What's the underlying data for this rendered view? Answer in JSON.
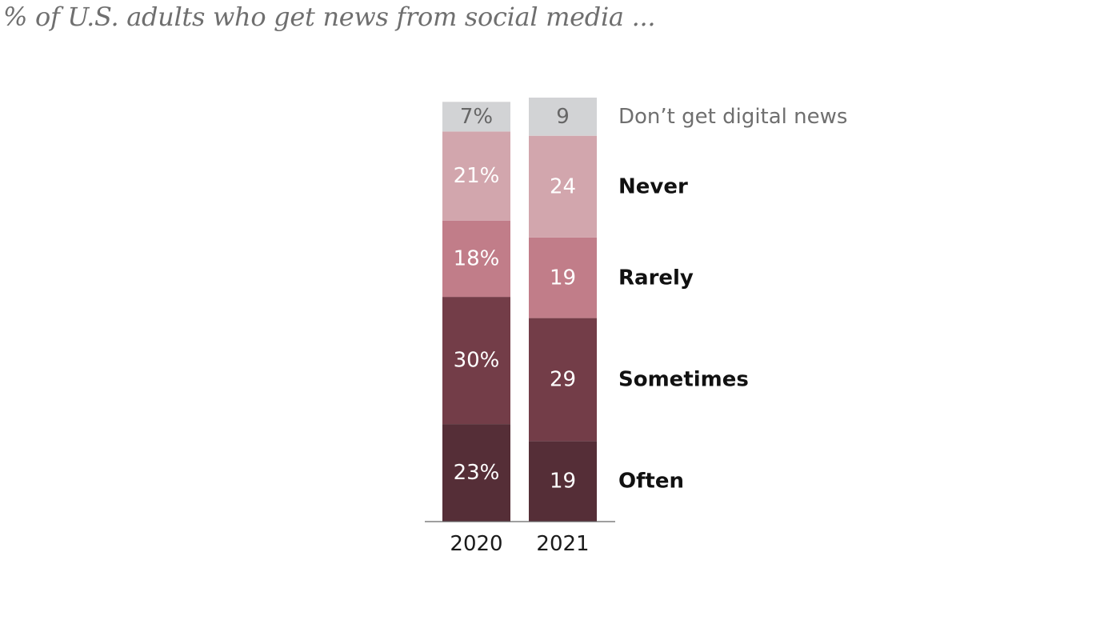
{
  "chart_data": {
    "type": "bar",
    "stacked": true,
    "title": "% of U.S. adults who get news from social media ...",
    "categories": [
      "2020",
      "2021"
    ],
    "series": [
      {
        "name": "Often",
        "values": [
          23,
          19
        ],
        "labels": [
          "23%",
          "19"
        ],
        "color": "#552e37",
        "label_color": "#ffffff",
        "legend_color": "#111111",
        "legend_bold": true
      },
      {
        "name": "Sometimes",
        "values": [
          30,
          29
        ],
        "labels": [
          "30%",
          "29"
        ],
        "color": "#733d48",
        "label_color": "#ffffff",
        "legend_color": "#111111",
        "legend_bold": true
      },
      {
        "name": "Rarely",
        "values": [
          18,
          19
        ],
        "labels": [
          "18%",
          "19"
        ],
        "color": "#c17d89",
        "label_color": "#ffffff",
        "legend_color": "#111111",
        "legend_bold": true
      },
      {
        "name": "Never",
        "values": [
          21,
          24
        ],
        "labels": [
          "21%",
          "24"
        ],
        "color": "#d2a6ad",
        "label_color": "#ffffff",
        "legend_color": "#111111",
        "legend_bold": true
      },
      {
        "name": "Don’t get digital news",
        "values": [
          7,
          9
        ],
        "labels": [
          "7%",
          "9"
        ],
        "color": "#d2d3d5",
        "label_color": "#666666",
        "legend_color": "#6f6f6f",
        "legend_bold": false
      }
    ],
    "legend_position": "right",
    "grid": false,
    "axis_line_color": "#666666"
  }
}
